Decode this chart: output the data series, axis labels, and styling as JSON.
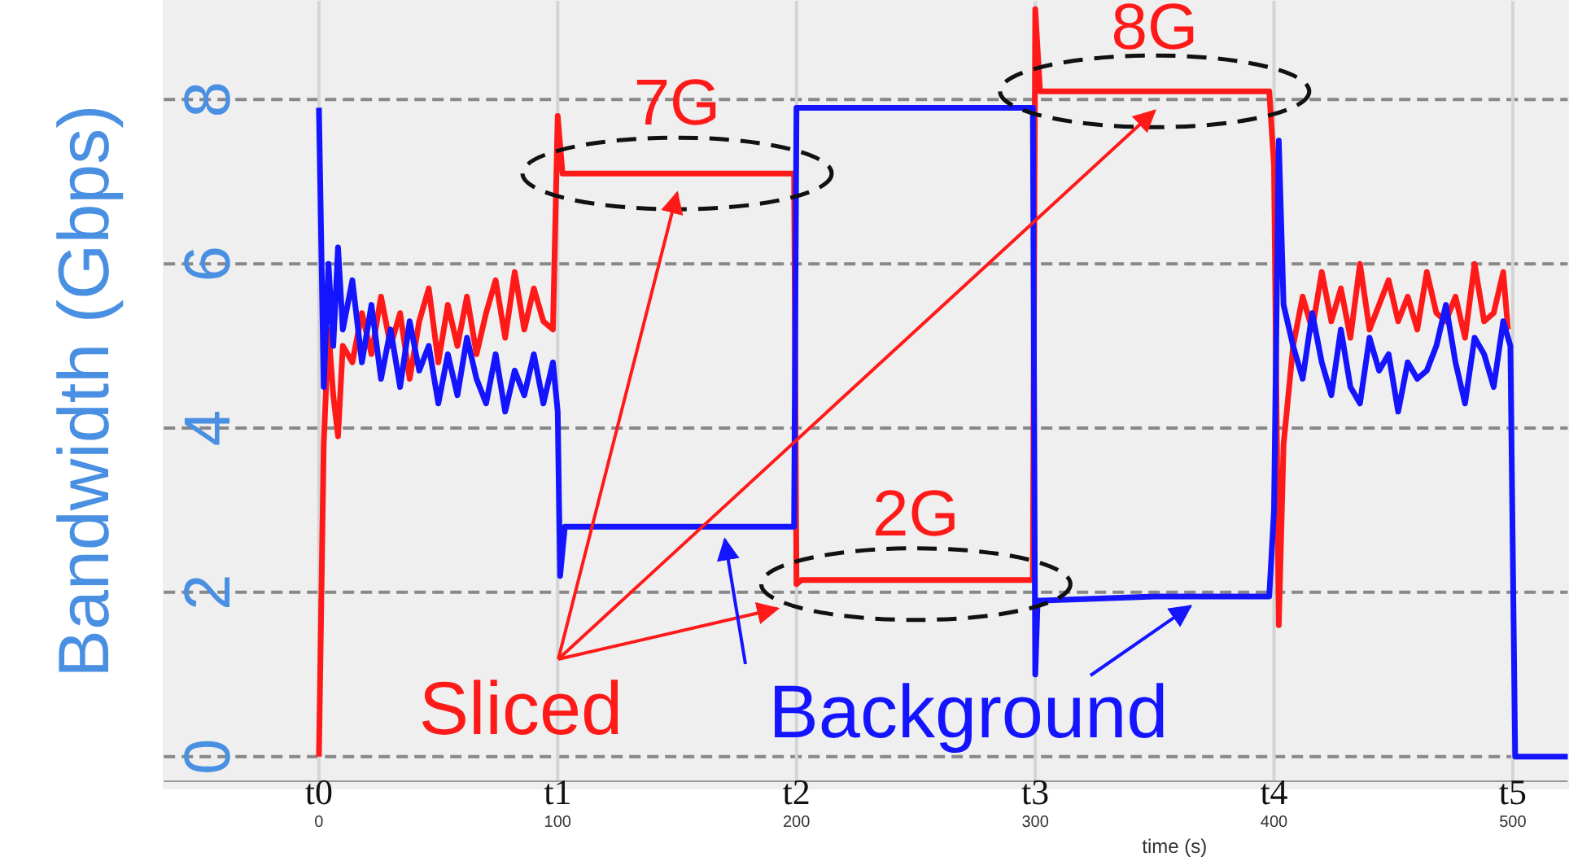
{
  "chart_data": {
    "type": "line",
    "xlabel": "time (s)",
    "ylabel": "Bandwidth (Gbps)",
    "xlim": [
      -65,
      523
    ],
    "ylim": [
      -0.3,
      9.2
    ],
    "xticks": [
      0,
      100,
      200,
      300,
      400,
      500
    ],
    "yticks": [
      0,
      2,
      4,
      6,
      8
    ],
    "grid": true,
    "legend": "bottom",
    "line_style": "solid",
    "marker": "none",
    "series": [
      {
        "name": "Sliced",
        "color": "#ff1a1a",
        "x": [
          0,
          2,
          4,
          6,
          8,
          10,
          14,
          18,
          22,
          26,
          30,
          34,
          38,
          42,
          46,
          50,
          54,
          58,
          62,
          66,
          70,
          74,
          78,
          82,
          86,
          90,
          94,
          98,
          100,
          102,
          150,
          199,
          200,
          202,
          250,
          299,
          300,
          302,
          350,
          398,
          400,
          402,
          404,
          408,
          412,
          416,
          420,
          424,
          428,
          432,
          436,
          440,
          444,
          448,
          452,
          456,
          460,
          464,
          468,
          472,
          476,
          480,
          484,
          488,
          492,
          496,
          498
        ],
        "values": [
          0,
          3.8,
          5.2,
          4.4,
          3.9,
          5.0,
          4.8,
          5.4,
          4.9,
          5.6,
          5.0,
          5.4,
          4.6,
          5.3,
          5.7,
          4.8,
          5.5,
          5.0,
          5.6,
          4.9,
          5.4,
          5.8,
          5.1,
          5.9,
          5.2,
          5.7,
          5.3,
          5.2,
          7.8,
          7.1,
          7.1,
          7.1,
          2.1,
          2.15,
          2.15,
          2.15,
          9.1,
          8.1,
          8.1,
          8.1,
          7.2,
          1.6,
          3.8,
          5.0,
          5.6,
          5.2,
          5.9,
          5.3,
          5.7,
          5.1,
          6.0,
          5.2,
          5.5,
          5.8,
          5.3,
          5.6,
          5.2,
          5.9,
          5.4,
          5.3,
          5.6,
          5.1,
          6.0,
          5.3,
          5.4,
          5.9,
          5.2
        ]
      },
      {
        "name": "Background",
        "color": "#1414ff",
        "x": [
          0,
          2,
          4,
          6,
          8,
          10,
          14,
          18,
          22,
          26,
          30,
          34,
          38,
          42,
          46,
          50,
          54,
          58,
          62,
          66,
          70,
          74,
          78,
          82,
          86,
          90,
          94,
          98,
          100,
          101,
          103,
          150,
          199,
          200,
          202,
          250,
          299,
          300,
          301,
          303,
          350,
          398,
          400,
          402,
          404,
          408,
          412,
          416,
          420,
          424,
          428,
          432,
          436,
          440,
          444,
          448,
          452,
          456,
          460,
          464,
          468,
          472,
          476,
          480,
          484,
          488,
          492,
          496,
          499,
          501,
          523
        ],
        "values": [
          7.9,
          4.5,
          6.0,
          5.0,
          6.2,
          5.2,
          5.8,
          4.8,
          5.5,
          4.6,
          5.2,
          4.5,
          5.3,
          4.7,
          5.0,
          4.3,
          4.9,
          4.4,
          5.1,
          4.6,
          4.3,
          4.9,
          4.2,
          4.7,
          4.4,
          4.9,
          4.3,
          4.8,
          4.2,
          2.2,
          2.8,
          2.8,
          2.8,
          7.9,
          7.9,
          7.9,
          7.9,
          1.0,
          1.9,
          1.9,
          1.95,
          1.95,
          3.0,
          7.5,
          5.5,
          5.0,
          4.6,
          5.4,
          4.8,
          4.4,
          5.2,
          4.5,
          4.3,
          5.1,
          4.7,
          4.9,
          4.2,
          4.8,
          4.6,
          4.7,
          5.0,
          5.5,
          4.8,
          4.3,
          5.1,
          4.9,
          4.5,
          5.3,
          5.0,
          0,
          0
        ]
      }
    ],
    "annotations": [
      {
        "text": "7G",
        "x": 150,
        "y": 7.1
      },
      {
        "text": "2G",
        "x": 250,
        "y": 2.1
      },
      {
        "text": "8G",
        "x": 350,
        "y": 8.1
      },
      "t0",
      "t1",
      "t2",
      "t3",
      "t4",
      "t5"
    ]
  }
}
